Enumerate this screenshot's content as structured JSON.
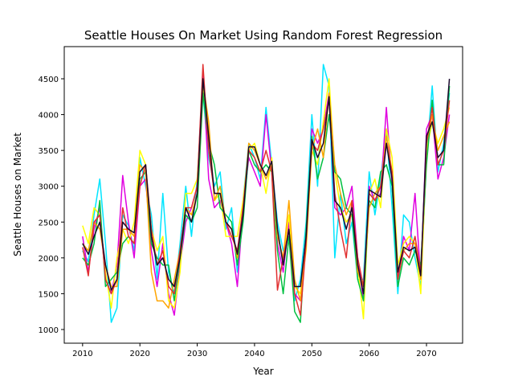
{
  "chart_data": {
    "type": "line",
    "title": "Seattle Houses On Market Using Random Forest Regression",
    "xlabel": "Year",
    "ylabel": "Seattle Houses on Market",
    "x": [
      2010,
      2011,
      2012,
      2013,
      2014,
      2015,
      2016,
      2017,
      2018,
      2019,
      2020,
      2021,
      2022,
      2023,
      2024,
      2025,
      2026,
      2027,
      2028,
      2029,
      2030,
      2031,
      2032,
      2033,
      2034,
      2035,
      2036,
      2037,
      2038,
      2039,
      2040,
      2041,
      2042,
      2043,
      2044,
      2045,
      2046,
      2047,
      2048,
      2049,
      2050,
      2051,
      2052,
      2053,
      2054,
      2055,
      2056,
      2057,
      2058,
      2059,
      2060,
      2061,
      2062,
      2063,
      2064,
      2065,
      2066,
      2067,
      2068,
      2069,
      2070,
      2071,
      2072,
      2073,
      2074
    ],
    "xlim": [
      2006.8,
      2076.3
    ],
    "xticks": [
      2010,
      2020,
      2030,
      2040,
      2050,
      2060,
      2070
    ],
    "ylim": [
      809,
      4949
    ],
    "yticks": [
      1000,
      1500,
      2000,
      2500,
      3000,
      3500,
      4000,
      4500
    ],
    "series": [
      {
        "color": "#00e5ff",
        "values": [
          2100,
          1950,
          2600,
          3100,
          2200,
          1100,
          1300,
          2600,
          2450,
          2100,
          3400,
          3000,
          2600,
          1700,
          2900,
          1800,
          1500,
          2200,
          3000,
          2300,
          3100,
          4300,
          3400,
          3000,
          3200,
          2400,
          2700,
          1800,
          2800,
          3600,
          3400,
          3100,
          4100,
          3300,
          2500,
          2100,
          2300,
          1400,
          1700,
          2500,
          4000,
          3000,
          4700,
          4400,
          2000,
          2900,
          2200,
          2500,
          1700,
          1700,
          3200,
          2600,
          3100,
          3800,
          2700,
          1500,
          2600,
          2500,
          2000,
          1600,
          3400,
          4400,
          3200,
          3600,
          4300
        ]
      },
      {
        "color": "#e000e0",
        "values": [
          2300,
          1800,
          2400,
          2700,
          1700,
          1500,
          1900,
          3150,
          2500,
          2000,
          3000,
          3100,
          2100,
          1600,
          2200,
          1500,
          1200,
          1900,
          2500,
          2700,
          3000,
          4600,
          3100,
          2700,
          2800,
          2500,
          2200,
          1600,
          2700,
          3400,
          3200,
          3000,
          4000,
          3200,
          2200,
          1800,
          2500,
          1500,
          1400,
          2200,
          3800,
          3600,
          3800,
          4300,
          2700,
          2600,
          2700,
          3000,
          2000,
          1400,
          3000,
          2800,
          2900,
          4100,
          3000,
          1700,
          2300,
          2100,
          2900,
          1700,
          3800,
          4000,
          3100,
          3400,
          4000
        ]
      },
      {
        "color": "#ffff00",
        "values": [
          2450,
          2200,
          2700,
          2600,
          1800,
          1300,
          2000,
          2400,
          2200,
          2500,
          3500,
          3300,
          2400,
          2100,
          2300,
          1400,
          1300,
          1800,
          2900,
          2900,
          3100,
          4400,
          3800,
          2800,
          2900,
          2300,
          2300,
          2300,
          2800,
          3500,
          3600,
          3300,
          2900,
          3400,
          2300,
          2000,
          2600,
          1600,
          1500,
          2100,
          3500,
          3300,
          3900,
          4500,
          3200,
          2700,
          2500,
          2600,
          1900,
          1150,
          2900,
          3100,
          2700,
          3800,
          3400,
          1900,
          2200,
          2300,
          2200,
          1500,
          3500,
          3900,
          3600,
          3800,
          4100
        ]
      },
      {
        "color": "#00c040",
        "values": [
          2000,
          1900,
          2200,
          2800,
          1600,
          1700,
          1800,
          2200,
          2300,
          2200,
          3100,
          3200,
          2200,
          2000,
          1900,
          1900,
          1400,
          2000,
          2600,
          2500,
          2700,
          4300,
          3600,
          3300,
          2700,
          2600,
          2500,
          1900,
          2500,
          3500,
          3300,
          3200,
          3300,
          3200,
          2100,
          1500,
          2300,
          1250,
          1100,
          2400,
          3700,
          3100,
          3400,
          4000,
          3200,
          3100,
          2700,
          2600,
          1700,
          1400,
          2800,
          2700,
          3200,
          3300,
          3000,
          1600,
          2000,
          1900,
          2100,
          1900,
          3300,
          4200,
          3300,
          3300,
          4400
        ]
      },
      {
        "color": "#ffa500",
        "values": [
          2200,
          2100,
          2500,
          2400,
          1900,
          1600,
          1600,
          2400,
          2400,
          2300,
          3300,
          3200,
          1800,
          1400,
          1400,
          1300,
          1700,
          2100,
          2700,
          2600,
          2900,
          4450,
          3900,
          2800,
          3000,
          2500,
          2400,
          2000,
          2700,
          3600,
          3500,
          3300,
          3100,
          3300,
          2300,
          2000,
          2800,
          1700,
          1400,
          2300,
          3500,
          3800,
          3400,
          4300,
          3300,
          2900,
          2600,
          2800,
          1800,
          1600,
          2700,
          2900,
          3000,
          3700,
          3200,
          1800,
          2100,
          2200,
          2200,
          1700,
          3600,
          4000,
          3500,
          3700,
          3900
        ]
      },
      {
        "color": "#e03030",
        "values": [
          2150,
          1750,
          2500,
          2600,
          1700,
          1500,
          1700,
          2700,
          2300,
          2200,
          3000,
          3300,
          2400,
          1900,
          2100,
          1600,
          1500,
          2100,
          2700,
          2700,
          3000,
          4700,
          3500,
          2900,
          2900,
          2500,
          2300,
          2100,
          2700,
          3500,
          3400,
          3200,
          3500,
          3200,
          1550,
          2000,
          2400,
          1500,
          1200,
          2200,
          3600,
          3500,
          3800,
          4200,
          2900,
          2400,
          2000,
          2800,
          2000,
          1600,
          2900,
          2800,
          3000,
          3600,
          3200,
          1700,
          2100,
          2000,
          2300,
          1800,
          3600,
          4100,
          3300,
          3500,
          4200
        ]
      },
      {
        "color": "#1a0a2e",
        "values": [
          2200,
          2050,
          2300,
          2500,
          1900,
          1550,
          1700,
          2500,
          2400,
          2350,
          3200,
          3300,
          2300,
          1900,
          2000,
          1700,
          1600,
          2000,
          2700,
          2500,
          2900,
          4500,
          3700,
          2900,
          2900,
          2500,
          2400,
          2050,
          2600,
          3550,
          3550,
          3300,
          3150,
          3350,
          2400,
          1900,
          2400,
          1600,
          1600,
          2300,
          3650,
          3400,
          3600,
          4250,
          2800,
          2700,
          2400,
          2700,
          1900,
          1500,
          2950,
          2900,
          2850,
          3600,
          3100,
          1800,
          2150,
          2100,
          2150,
          1750,
          3700,
          3900,
          3400,
          3500,
          4500
        ]
      }
    ]
  }
}
